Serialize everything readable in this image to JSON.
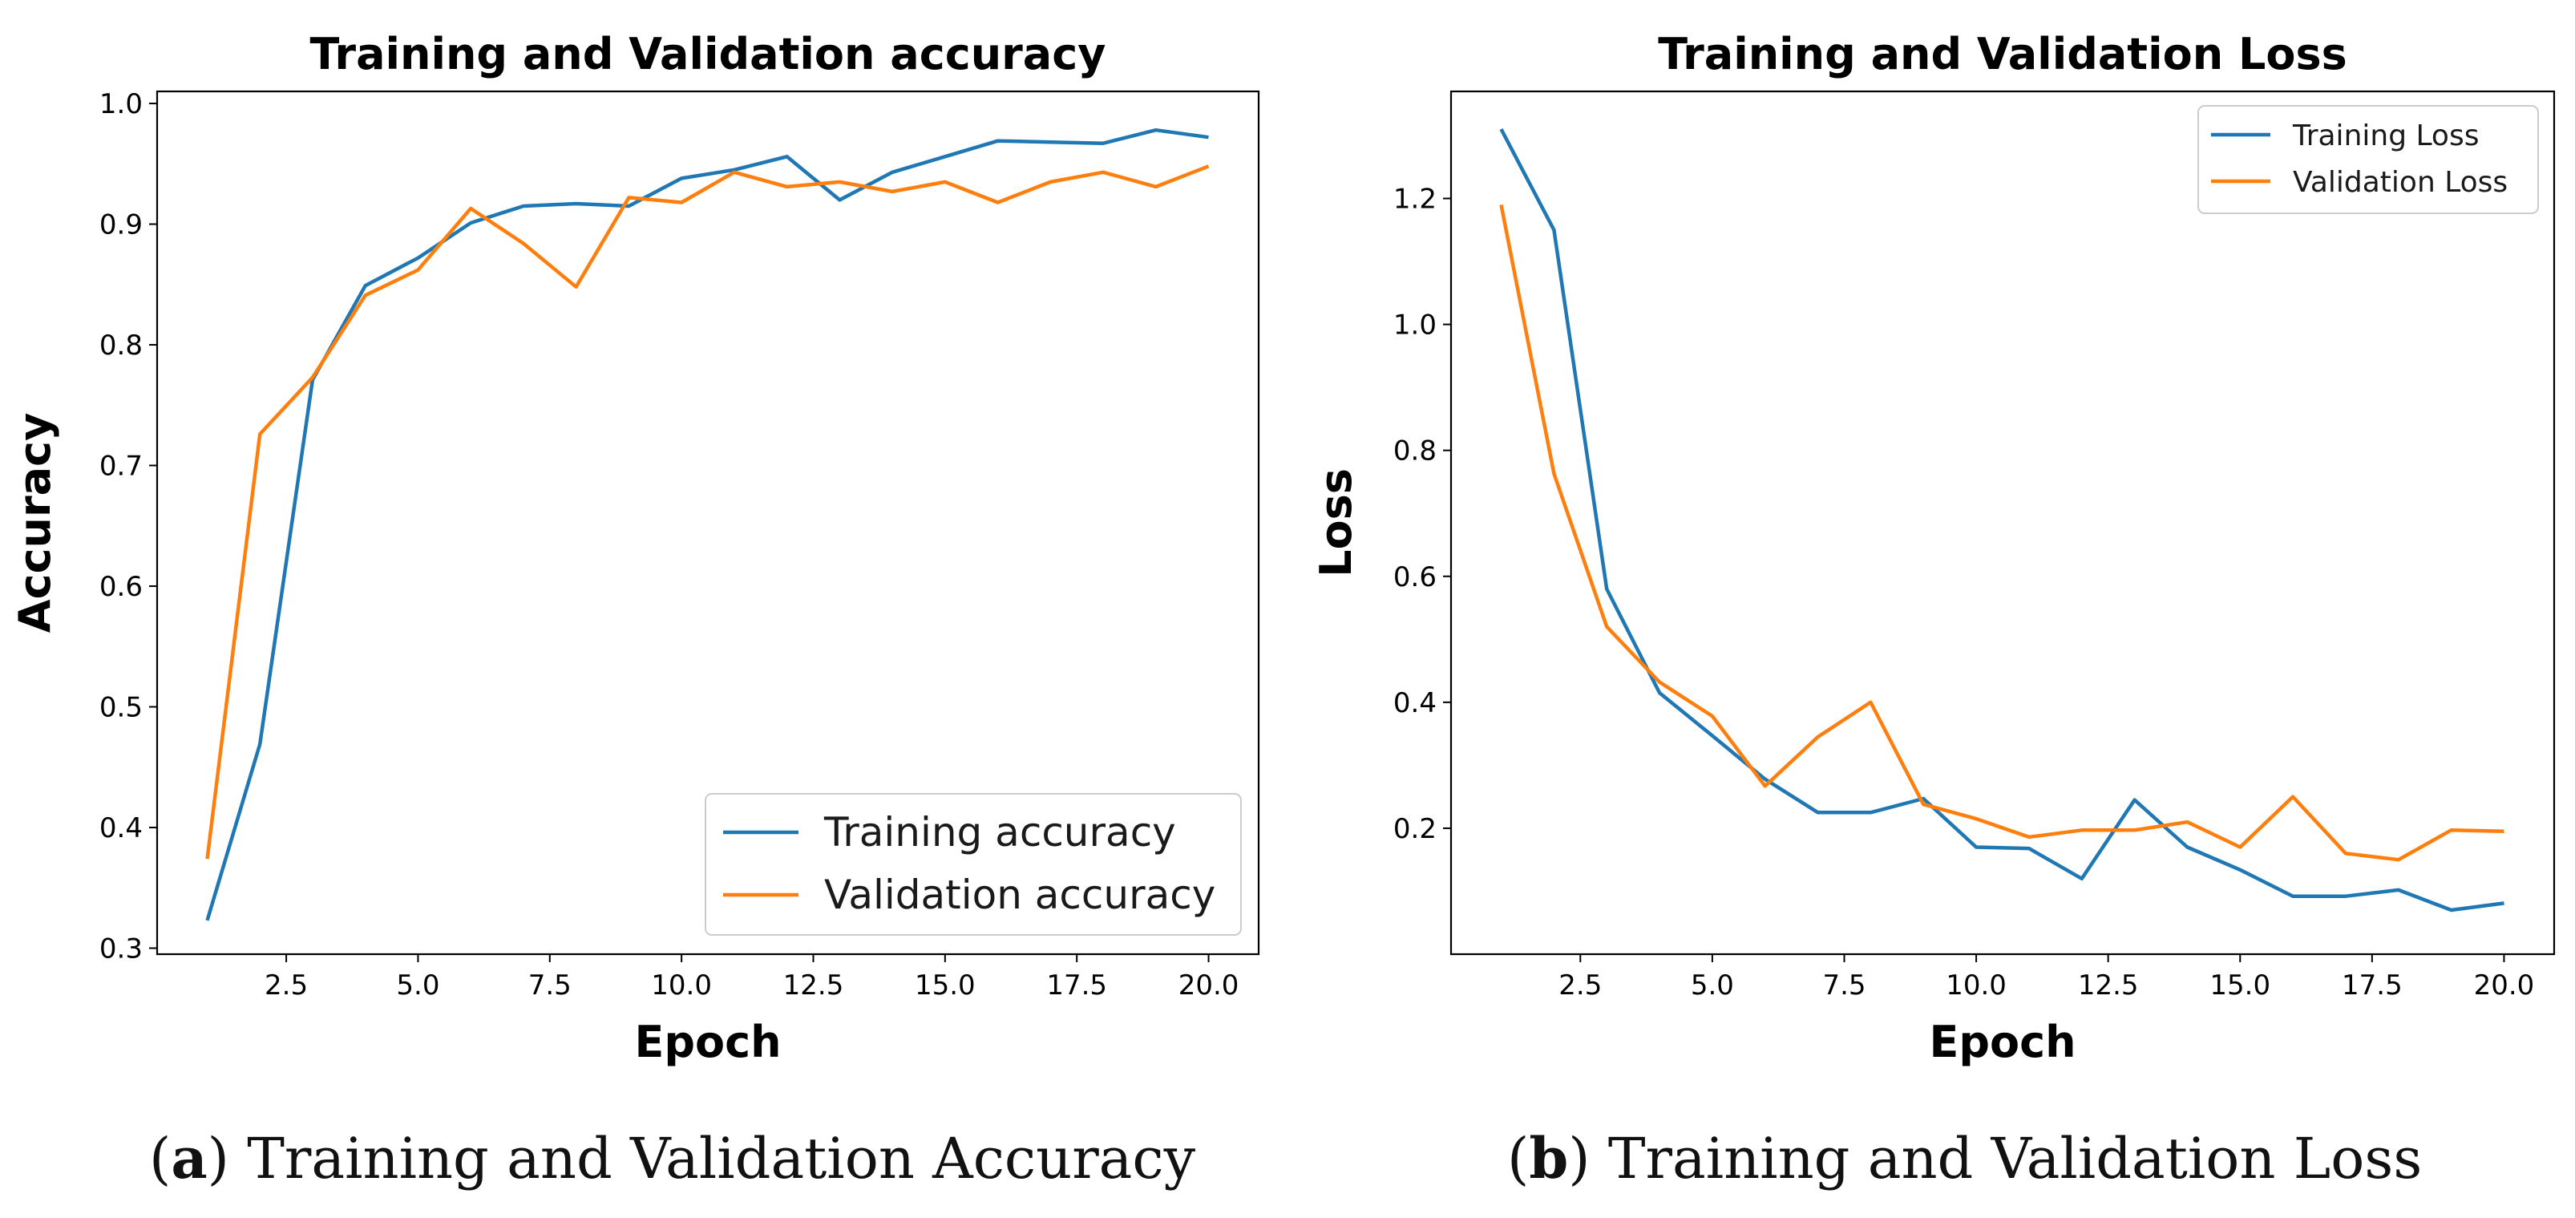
{
  "chart_data": [
    {
      "type": "line",
      "title": "Training and Validation accuracy",
      "xlabel": "Epoch",
      "ylabel": "Accuracy",
      "xlim": [
        0.05,
        20.95
      ],
      "ylim": [
        0.295,
        1.01
      ],
      "xticks": [
        2.5,
        5.0,
        7.5,
        10.0,
        12.5,
        15.0,
        17.5,
        20.0
      ],
      "yticks": [
        0.3,
        0.4,
        0.5,
        0.6,
        0.7,
        0.8,
        0.9,
        1.0
      ],
      "grid": false,
      "legend_position": "lower-right",
      "x": [
        1,
        2,
        3,
        4,
        5,
        6,
        7,
        8,
        9,
        10,
        11,
        12,
        13,
        14,
        15,
        16,
        17,
        18,
        19,
        20
      ],
      "series": [
        {
          "name": "Training accuracy",
          "color": "#1f77b4",
          "values": [
            0.323,
            0.469,
            0.771,
            0.849,
            0.872,
            0.901,
            0.915,
            0.917,
            0.915,
            0.938,
            0.945,
            0.956,
            0.92,
            0.943,
            0.956,
            0.969,
            0.968,
            0.967,
            0.978,
            0.972
          ]
        },
        {
          "name": "Validation accuracy",
          "color": "#ff7f0e",
          "values": [
            0.374,
            0.726,
            0.773,
            0.841,
            0.862,
            0.913,
            0.884,
            0.848,
            0.922,
            0.918,
            0.943,
            0.931,
            0.935,
            0.927,
            0.935,
            0.918,
            0.935,
            0.943,
            0.931,
            0.948
          ]
        }
      ]
    },
    {
      "type": "line",
      "title": "Training and Validation Loss",
      "xlabel": "Epoch",
      "ylabel": "Loss",
      "xlim": [
        0.05,
        20.95
      ],
      "ylim": [
        0.0,
        1.37
      ],
      "xticks": [
        2.5,
        5.0,
        7.5,
        10.0,
        12.5,
        15.0,
        17.5,
        20.0
      ],
      "yticks": [
        0.2,
        0.4,
        0.6,
        0.8,
        1.0,
        1.2
      ],
      "grid": false,
      "legend_position": "upper-right",
      "x": [
        1,
        2,
        3,
        4,
        5,
        6,
        7,
        8,
        9,
        10,
        11,
        12,
        13,
        14,
        15,
        16,
        17,
        18,
        19,
        20
      ],
      "series": [
        {
          "name": "Training Loss",
          "color": "#1f77b4",
          "values": [
            1.31,
            1.15,
            0.58,
            0.415,
            0.347,
            0.278,
            0.225,
            0.225,
            0.247,
            0.17,
            0.168,
            0.12,
            0.245,
            0.17,
            0.134,
            0.092,
            0.092,
            0.102,
            0.07,
            0.081
          ]
        },
        {
          "name": "Validation Loss",
          "color": "#ff7f0e",
          "values": [
            1.19,
            0.763,
            0.52,
            0.432,
            0.378,
            0.267,
            0.345,
            0.4,
            0.238,
            0.215,
            0.186,
            0.197,
            0.197,
            0.21,
            0.17,
            0.25,
            0.16,
            0.15,
            0.197,
            0.195
          ]
        }
      ]
    }
  ],
  "captions": [
    {
      "label": "a",
      "text": "Training and Validation Accuracy"
    },
    {
      "label": "b",
      "text": "Training and Validation Loss"
    }
  ]
}
